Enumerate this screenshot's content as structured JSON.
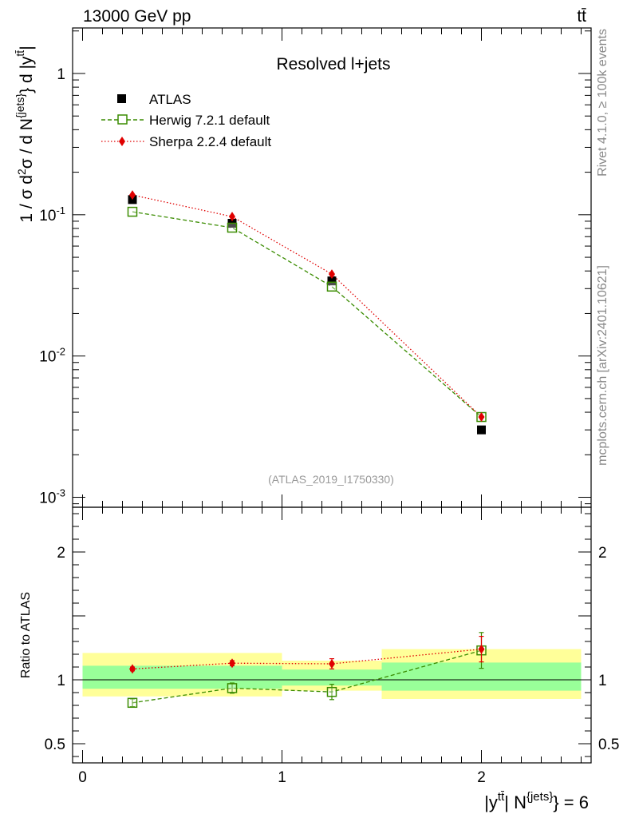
{
  "header": {
    "energy_label": "13000 GeV pp",
    "process_label": "tt̄"
  },
  "side_text": {
    "rivet": "Rivet 4.1.0, ≥ 100k events",
    "mcplots": "mcplots.cern.ch [arXiv:2401.10621]"
  },
  "chart_data": [
    {
      "type": "line",
      "title": "Resolved l+jets",
      "watermark": "(ATLAS_2019_I1750330)",
      "ylabel": "1 / σ d²σ / d N^{jets} d |y^{tt̄}|",
      "yscale": "log",
      "ylim": [
        0.00085,
        2.1
      ],
      "xlim": [
        -0.05,
        2.55
      ],
      "y_ticks": [
        {
          "value": 1,
          "label": "1"
        },
        {
          "value": 0.1,
          "label": "10^-1"
        },
        {
          "value": 0.01,
          "label": "10^-2"
        },
        {
          "value": 0.001,
          "label": "10^-3"
        }
      ],
      "legend": [
        "ATLAS",
        "Herwig 7.2.1 default",
        "Sherpa 2.2.4 default"
      ],
      "series": [
        {
          "name": "ATLAS",
          "color": "#000000",
          "marker": "square-filled",
          "x": [
            0.25,
            0.75,
            1.25,
            2.0
          ],
          "values": [
            0.128,
            0.087,
            0.034,
            0.003
          ]
        },
        {
          "name": "Herwig 7.2.1 default",
          "color": "#3a8c00",
          "marker": "square-open",
          "x": [
            0.25,
            0.75,
            1.25,
            2.0
          ],
          "values": [
            0.105,
            0.081,
            0.031,
            0.0037
          ]
        },
        {
          "name": "Sherpa 2.2.4 default",
          "color": "#e00000",
          "marker": "diamond",
          "x": [
            0.25,
            0.75,
            1.25,
            2.0
          ],
          "values": [
            0.138,
            0.097,
            0.038,
            0.0037
          ]
        }
      ]
    },
    {
      "type": "line",
      "ylabel": "Ratio to ATLAS",
      "xlabel": "|y^{tt̄}| N^{jets} = 6",
      "xlim": [
        -0.05,
        2.55
      ],
      "ylim": [
        0.35,
        2.35
      ],
      "x_ticks": [
        {
          "value": 0,
          "label": "0"
        },
        {
          "value": 1,
          "label": "1"
        },
        {
          "value": 2,
          "label": "2"
        }
      ],
      "y_ticks": [
        {
          "value": 2,
          "label": "2"
        },
        {
          "value": 1,
          "label": "1"
        },
        {
          "value": 0.5,
          "label": "0.5"
        }
      ],
      "reference": 1,
      "bands": [
        {
          "x0": 0,
          "x1": 1,
          "stat": [
            0.93,
            1.11
          ],
          "total": [
            0.87,
            1.21
          ]
        },
        {
          "x0": 1,
          "x1": 1.5,
          "stat": [
            0.955,
            1.08
          ],
          "total": [
            0.915,
            1.15
          ]
        },
        {
          "x0": 1.5,
          "x1": 2.5,
          "stat": [
            0.915,
            1.135
          ],
          "total": [
            0.85,
            1.24
          ]
        }
      ],
      "band_colors": {
        "stat": "#99ff99",
        "total": "#ffff99"
      },
      "series": [
        {
          "name": "Herwig 7.2.1 default",
          "color": "#3a8c00",
          "marker": "square-open",
          "x": [
            0.25,
            0.75,
            1.25,
            2.0
          ],
          "values": [
            0.82,
            0.935,
            0.905,
            1.23
          ],
          "err": [
            0.03,
            0.04,
            0.06,
            0.14
          ]
        },
        {
          "name": "Sherpa 2.2.4 default",
          "color": "#e00000",
          "marker": "diamond",
          "x": [
            0.25,
            0.75,
            1.25,
            2.0
          ],
          "values": [
            1.085,
            1.13,
            1.125,
            1.24
          ],
          "err": [
            0.015,
            0.02,
            0.04,
            0.1
          ]
        }
      ]
    }
  ]
}
